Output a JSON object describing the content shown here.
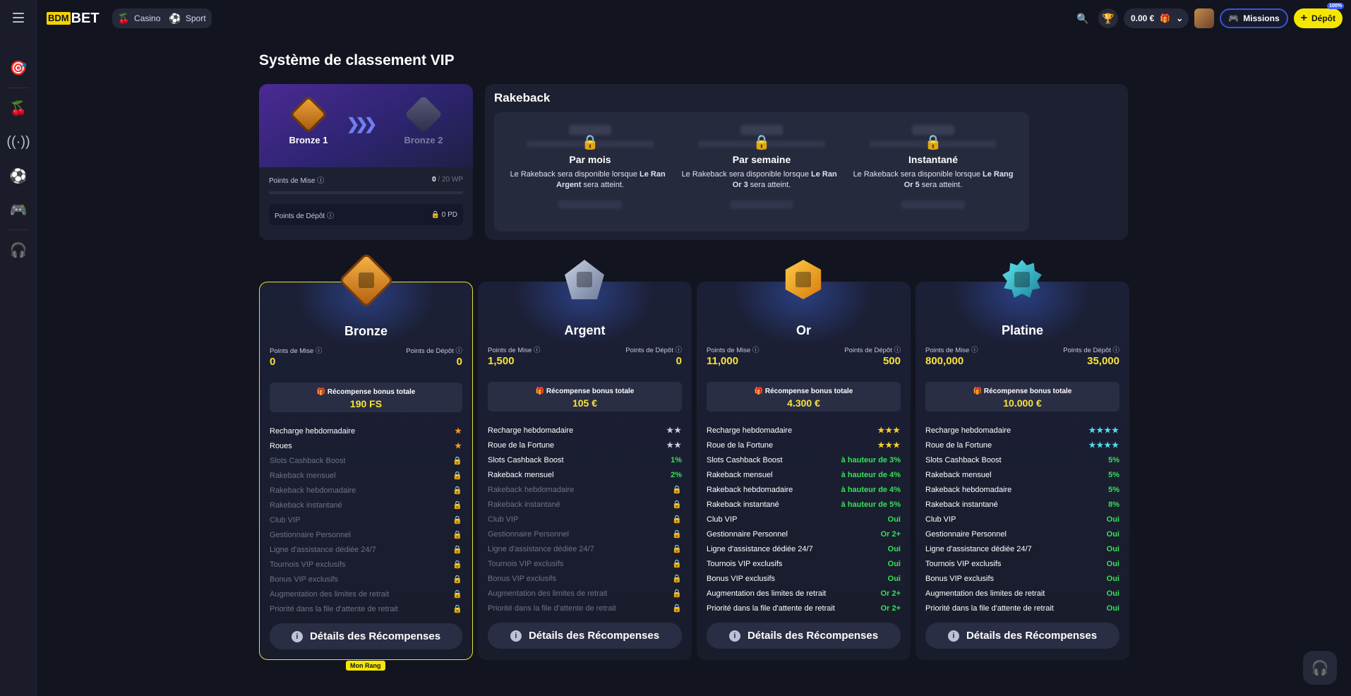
{
  "brand": {
    "box": "BDM",
    "rest": "BET"
  },
  "nav": {
    "casino": "Casino",
    "sport": "Sport"
  },
  "topbar": {
    "balance": "0.00 €",
    "missions": "Missions",
    "depot": "Dépôt",
    "depot_badge": "100%"
  },
  "page_title": "Système de classement VIP",
  "progress": {
    "current": "Bronze 1",
    "next": "Bronze 2",
    "mise_label": "Points de Mise",
    "mise_value": "0",
    "mise_total": "/ 20 WP",
    "depot_label": "Points de Dépôt",
    "depot_value": "0 PD"
  },
  "rakeback": {
    "title": "Rakeback",
    "cards": [
      {
        "name": "Par mois",
        "pre": "Le Rakeback sera disponible lorsque ",
        "rank": "Le Rang Argent",
        "post": " sera atteint."
      },
      {
        "name": "Par semaine",
        "pre": "Le Rakeback sera disponible lorsque ",
        "rank": "Le Rang Or 3",
        "post": " sera atteint."
      },
      {
        "name": "Instantané",
        "pre": "Le Rakeback sera disponible lorsque ",
        "rank": "Le Rang Or 5",
        "post": " sera atteint."
      }
    ]
  },
  "tiers": [
    {
      "name": "Bronze",
      "mise_label": "Points de Mise",
      "depot_label": "Points de Dépôt",
      "mise": "0",
      "depot": "0",
      "bonus_label": "Récompense bonus totale",
      "bonus": "190 FS",
      "details": "Détails des Récompenses",
      "current_label": "Mon Rang",
      "features": [
        {
          "l": "Recharge hebdomadaire",
          "v": "★",
          "t": "star",
          "c": "#f29a27",
          "on": true
        },
        {
          "l": "Roues",
          "v": "★",
          "t": "star",
          "c": "#f29a27",
          "on": true
        },
        {
          "l": "Slots Cashback Boost",
          "v": "🔒",
          "t": "lk",
          "on": false
        },
        {
          "l": "Rakeback mensuel",
          "v": "🔒",
          "t": "lk",
          "on": false
        },
        {
          "l": "Rakeback hebdomadaire",
          "v": "🔒",
          "t": "lk",
          "on": false
        },
        {
          "l": "Rakeback instantané",
          "v": "🔒",
          "t": "lk",
          "on": false
        },
        {
          "l": "Club VIP",
          "v": "🔒",
          "t": "lk",
          "on": false
        },
        {
          "l": "Gestionnaire Personnel",
          "v": "🔒",
          "t": "lk",
          "on": false
        },
        {
          "l": "Ligne d'assistance dédiée 24/7",
          "v": "🔒",
          "t": "lk",
          "on": false
        },
        {
          "l": "Tournois VIP exclusifs",
          "v": "🔒",
          "t": "lk",
          "on": false
        },
        {
          "l": "Bonus VIP exclusifs",
          "v": "🔒",
          "t": "lk",
          "on": false
        },
        {
          "l": "Augmentation des limites de retrait",
          "v": "🔒",
          "t": "lk",
          "on": false
        },
        {
          "l": "Priorité dans la file d'attente de retrait",
          "v": "🔒",
          "t": "lk",
          "on": false
        }
      ]
    },
    {
      "name": "Argent",
      "mise_label": "Points de Mise",
      "depot_label": "Points de Dépôt",
      "mise": "1,500",
      "depot": "0",
      "bonus_label": "Récompense bonus totale",
      "bonus": "105 €",
      "details": "Détails des Récompenses",
      "features": [
        {
          "l": "Recharge hebdomadaire",
          "v": "★★",
          "t": "star",
          "c": "#c8cee0",
          "on": true
        },
        {
          "l": "Roue de la Fortune",
          "v": "★★",
          "t": "star",
          "c": "#c8cee0",
          "on": true
        },
        {
          "l": "Slots Cashback Boost",
          "v": "1%",
          "t": "g",
          "on": true
        },
        {
          "l": "Rakeback mensuel",
          "v": "2%",
          "t": "g",
          "on": true
        },
        {
          "l": "Rakeback hebdomadaire",
          "v": "🔒",
          "t": "lk",
          "on": false
        },
        {
          "l": "Rakeback instantané",
          "v": "🔒",
          "t": "lk",
          "on": false
        },
        {
          "l": "Club VIP",
          "v": "🔒",
          "t": "lk",
          "on": false
        },
        {
          "l": "Gestionnaire Personnel",
          "v": "🔒",
          "t": "lk",
          "on": false
        },
        {
          "l": "Ligne d'assistance dédiée 24/7",
          "v": "🔒",
          "t": "lk",
          "on": false
        },
        {
          "l": "Tournois VIP exclusifs",
          "v": "🔒",
          "t": "lk",
          "on": false
        },
        {
          "l": "Bonus VIP exclusifs",
          "v": "🔒",
          "t": "lk",
          "on": false
        },
        {
          "l": "Augmentation des limites de retrait",
          "v": "🔒",
          "t": "lk",
          "on": false
        },
        {
          "l": "Priorité dans la file d'attente de retrait",
          "v": "🔒",
          "t": "lk",
          "on": false
        }
      ]
    },
    {
      "name": "Or",
      "mise_label": "Points de Mise",
      "depot_label": "Points de Dépôt",
      "mise": "11,000",
      "depot": "500",
      "bonus_label": "Récompense bonus totale",
      "bonus": "4.300 €",
      "details": "Détails des Récompenses",
      "features": [
        {
          "l": "Recharge hebdomadaire",
          "v": "★★★",
          "t": "star",
          "c": "#f7d12a",
          "on": true
        },
        {
          "l": "Roue de la Fortune",
          "v": "★★★",
          "t": "star",
          "c": "#f7d12a",
          "on": true
        },
        {
          "l": "Slots Cashback Boost",
          "v": "à hauteur de 3%",
          "t": "g",
          "on": true
        },
        {
          "l": "Rakeback mensuel",
          "v": "à hauteur de 4%",
          "t": "g",
          "on": true
        },
        {
          "l": "Rakeback hebdomadaire",
          "v": "à hauteur de 4%",
          "t": "g",
          "on": true
        },
        {
          "l": "Rakeback instantané",
          "v": "à hauteur de 5%",
          "t": "g",
          "on": true
        },
        {
          "l": "Club VIP",
          "v": "Oui",
          "t": "g",
          "on": true
        },
        {
          "l": "Gestionnaire Personnel",
          "v": "Or 2+",
          "t": "g",
          "on": true
        },
        {
          "l": "Ligne d'assistance dédiée 24/7",
          "v": "Oui",
          "t": "g",
          "on": true
        },
        {
          "l": "Tournois VIP exclusifs",
          "v": "Oui",
          "t": "g",
          "on": true
        },
        {
          "l": "Bonus VIP exclusifs",
          "v": "Oui",
          "t": "g",
          "on": true
        },
        {
          "l": "Augmentation des limites de retrait",
          "v": "Or 2+",
          "t": "g",
          "on": true
        },
        {
          "l": "Priorité dans la file d'attente de retrait",
          "v": "Or 2+",
          "t": "g",
          "on": true
        }
      ]
    },
    {
      "name": "Platine",
      "mise_label": "Points de Mise",
      "depot_label": "Points de Dépôt",
      "mise": "800,000",
      "depot": "35,000",
      "bonus_label": "Récompense bonus totale",
      "bonus": "10.000 €",
      "details": "Détails des Récompenses",
      "features": [
        {
          "l": "Recharge hebdomadaire",
          "v": "★★★★",
          "t": "star",
          "c": "#4fe0ee",
          "on": true
        },
        {
          "l": "Roue de la Fortune",
          "v": "★★★★",
          "t": "star",
          "c": "#4fe0ee",
          "on": true
        },
        {
          "l": "Slots Cashback Boost",
          "v": "5%",
          "t": "g",
          "on": true
        },
        {
          "l": "Rakeback mensuel",
          "v": "5%",
          "t": "g",
          "on": true
        },
        {
          "l": "Rakeback hebdomadaire",
          "v": "5%",
          "t": "g",
          "on": true
        },
        {
          "l": "Rakeback instantané",
          "v": "8%",
          "t": "g",
          "on": true
        },
        {
          "l": "Club VIP",
          "v": "Oui",
          "t": "g",
          "on": true
        },
        {
          "l": "Gestionnaire Personnel",
          "v": "Oui",
          "t": "g",
          "on": true
        },
        {
          "l": "Ligne d'assistance dédiée 24/7",
          "v": "Oui",
          "t": "g",
          "on": true
        },
        {
          "l": "Tournois VIP exclusifs",
          "v": "Oui",
          "t": "g",
          "on": true
        },
        {
          "l": "Bonus VIP exclusifs",
          "v": "Oui",
          "t": "g",
          "on": true
        },
        {
          "l": "Augmentation des limites de retrait",
          "v": "Oui",
          "t": "g",
          "on": true
        },
        {
          "l": "Priorité dans la file d'attente de retrait",
          "v": "Oui",
          "t": "g",
          "on": true
        }
      ]
    }
  ]
}
